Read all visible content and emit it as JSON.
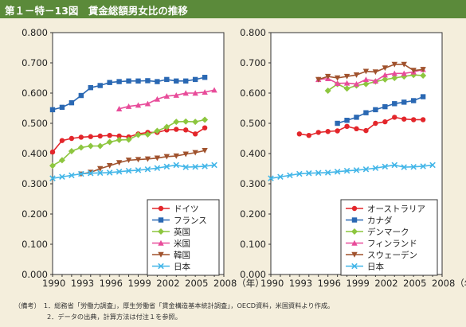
{
  "title": "第１－特－13図　賃金総額男女比の推移",
  "notes": [
    "（備考）　1．総務省「労働力調査」，厚生労働省「賃金構造基本統計調査」，OECD資料，米国資料より作成。",
    "　　　　　2．データの出典，計算方法は付注１を参照。"
  ],
  "chart_data": [
    {
      "type": "line",
      "xlim": [
        1990,
        2008
      ],
      "ylim": [
        0.0,
        0.8
      ],
      "grid": false,
      "legend_position": "bottom-right",
      "x_tick_labels": [
        "1990",
        "1993",
        "1996",
        "1999",
        "2002",
        "2005",
        "2008（年）"
      ],
      "y_tick_labels": [
        "0.000",
        "0.100",
        "0.200",
        "0.300",
        "0.400",
        "0.500",
        "0.600",
        "0.700",
        "0.800"
      ],
      "series": [
        {
          "name": "ドイツ",
          "color": "#e3262b",
          "marker": "circle",
          "x": [
            1990,
            1991,
            1992,
            1993,
            1994,
            1995,
            1996,
            1997,
            1998,
            1999,
            2000,
            2001,
            2002,
            2003,
            2004,
            2005,
            2006
          ],
          "y": [
            0.405,
            0.443,
            0.45,
            0.454,
            0.456,
            0.458,
            0.46,
            0.458,
            0.455,
            0.465,
            0.47,
            0.47,
            0.478,
            0.48,
            0.478,
            0.465,
            0.485
          ]
        },
        {
          "name": "フランス",
          "color": "#2a68b3",
          "marker": "square",
          "x": [
            1990,
            1991,
            1992,
            1993,
            1994,
            1995,
            1996,
            1997,
            1998,
            1999,
            2000,
            2001,
            2002,
            2003,
            2004,
            2005,
            2006
          ],
          "y": [
            0.545,
            0.553,
            0.568,
            0.592,
            0.618,
            0.625,
            0.635,
            0.638,
            0.64,
            0.64,
            0.641,
            0.638,
            0.645,
            0.64,
            0.64,
            0.645,
            0.652
          ]
        },
        {
          "name": "英国",
          "color": "#8dc63f",
          "marker": "diamond",
          "x": [
            1990,
            1991,
            1992,
            1993,
            1994,
            1995,
            1996,
            1997,
            1998,
            1999,
            2000,
            2001,
            2002,
            2003,
            2004,
            2005,
            2006
          ],
          "y": [
            0.36,
            0.378,
            0.408,
            0.42,
            0.425,
            0.425,
            0.438,
            0.445,
            0.446,
            0.462,
            0.463,
            0.475,
            0.488,
            0.505,
            0.506,
            0.505,
            0.512
          ]
        },
        {
          "name": "米国",
          "color": "#e84c9a",
          "marker": "triangle",
          "x": [
            1997,
            1998,
            1999,
            2000,
            2001,
            2002,
            2003,
            2004,
            2005,
            2006,
            2007
          ],
          "y": [
            0.548,
            0.556,
            0.56,
            0.565,
            0.58,
            0.59,
            0.593,
            0.6,
            0.6,
            0.603,
            0.61
          ]
        },
        {
          "name": "韓国",
          "color": "#a0522d",
          "marker": "triangle-down",
          "x": [
            1993,
            1994,
            1995,
            1996,
            1997,
            1998,
            1999,
            2000,
            2001,
            2002,
            2003,
            2004,
            2005,
            2006
          ],
          "y": [
            0.332,
            0.338,
            0.35,
            0.36,
            0.37,
            0.378,
            0.38,
            0.382,
            0.385,
            0.39,
            0.392,
            0.398,
            0.403,
            0.41
          ]
        },
        {
          "name": "日本",
          "color": "#43b6e8",
          "marker": "x",
          "x": [
            1990,
            1991,
            1992,
            1993,
            1994,
            1995,
            1996,
            1997,
            1998,
            1999,
            2000,
            2001,
            2002,
            2003,
            2004,
            2005,
            2006,
            2007
          ],
          "y": [
            0.318,
            0.323,
            0.328,
            0.333,
            0.335,
            0.336,
            0.337,
            0.34,
            0.343,
            0.345,
            0.348,
            0.352,
            0.357,
            0.362,
            0.355,
            0.356,
            0.358,
            0.362
          ]
        }
      ]
    },
    {
      "type": "line",
      "xlim": [
        1990,
        2008
      ],
      "ylim": [
        0.0,
        0.8
      ],
      "grid": false,
      "legend_position": "bottom-right",
      "x_tick_labels": [
        "1990",
        "1993",
        "1996",
        "1999",
        "2002",
        "2005",
        "2008（年）"
      ],
      "y_tick_labels": [
        "0.000",
        "0.100",
        "0.200",
        "0.300",
        "0.400",
        "0.500",
        "0.600",
        "0.700",
        "0.800"
      ],
      "series": [
        {
          "name": "オーストラリア",
          "color": "#e3262b",
          "marker": "circle",
          "x": [
            1993,
            1994,
            1995,
            1996,
            1997,
            1998,
            1999,
            2000,
            2001,
            2002,
            2003,
            2004,
            2005,
            2006
          ],
          "y": [
            0.465,
            0.46,
            0.47,
            0.473,
            0.475,
            0.49,
            0.482,
            0.476,
            0.5,
            0.505,
            0.52,
            0.514,
            0.512,
            0.512
          ]
        },
        {
          "name": "カナダ",
          "color": "#2a68b3",
          "marker": "square",
          "x": [
            1997,
            1998,
            1999,
            2000,
            2001,
            2002,
            2003,
            2004,
            2005,
            2006
          ],
          "y": [
            0.5,
            0.51,
            0.52,
            0.535,
            0.545,
            0.555,
            0.565,
            0.57,
            0.575,
            0.588
          ]
        },
        {
          "name": "デンマーク",
          "color": "#8dc63f",
          "marker": "diamond",
          "x": [
            1996,
            1997,
            1998,
            1999,
            2000,
            2001,
            2002,
            2003,
            2004,
            2005,
            2006
          ],
          "y": [
            0.608,
            0.63,
            0.615,
            0.625,
            0.63,
            0.638,
            0.645,
            0.65,
            0.655,
            0.66,
            0.658
          ]
        },
        {
          "name": "フィンランド",
          "color": "#e84c9a",
          "marker": "triangle",
          "x": [
            1995,
            1996,
            1997,
            1998,
            1999,
            2000,
            2001,
            2002,
            2003,
            2004,
            2005,
            2006
          ],
          "y": [
            0.645,
            0.648,
            0.632,
            0.633,
            0.63,
            0.645,
            0.64,
            0.66,
            0.665,
            0.665,
            0.67,
            0.678
          ]
        },
        {
          "name": "スウェーデン",
          "color": "#a0522d",
          "marker": "triangle-down",
          "x": [
            1995,
            1996,
            1997,
            1998,
            1999,
            2000,
            2001,
            2002,
            2003,
            2004,
            2005,
            2006
          ],
          "y": [
            0.645,
            0.655,
            0.65,
            0.655,
            0.66,
            0.672,
            0.67,
            0.683,
            0.695,
            0.695,
            0.675,
            0.678
          ]
        },
        {
          "name": "日本",
          "color": "#43b6e8",
          "marker": "x",
          "x": [
            1990,
            1991,
            1992,
            1993,
            1994,
            1995,
            1996,
            1997,
            1998,
            1999,
            2000,
            2001,
            2002,
            2003,
            2004,
            2005,
            2006,
            2007
          ],
          "y": [
            0.318,
            0.323,
            0.328,
            0.333,
            0.335,
            0.336,
            0.337,
            0.34,
            0.343,
            0.345,
            0.348,
            0.352,
            0.357,
            0.362,
            0.355,
            0.356,
            0.358,
            0.362
          ]
        }
      ]
    }
  ]
}
